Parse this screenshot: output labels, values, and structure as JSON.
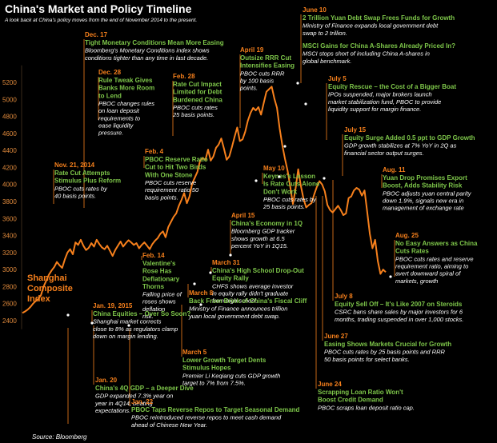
{
  "title": "China's Market and Policy Timeline",
  "subtitle": "A look back at China's policy moves from the end of November 2014 to the present.",
  "source": "Source: Bloomberg",
  "series_label": [
    "Shanghai",
    "Composite",
    "Index"
  ],
  "colors": {
    "background": "#000000",
    "line": "#f7801c",
    "date": "#f7801c",
    "headline": "#7ec74a",
    "body": "#ffffff",
    "axis": "#e08a3c",
    "title": "#ffffff",
    "leader": "#f7801c"
  },
  "chart_data": {
    "type": "line",
    "title": "China's Market and Policy Timeline",
    "ylim": [
      2300,
      5400
    ],
    "yticks": [
      2400,
      2600,
      2800,
      3000,
      3200,
      3400,
      3600,
      3800,
      4000,
      4200,
      4400,
      4600,
      4800,
      5000,
      5200
    ],
    "series": [
      {
        "name": "Shanghai Composite Index",
        "t": [
          0,
          2,
          4,
          6,
          8,
          10,
          12,
          14,
          16,
          18,
          20,
          22,
          24,
          26,
          28,
          30,
          32,
          34,
          36,
          38,
          40,
          42,
          44,
          46,
          48,
          50,
          52,
          54,
          56,
          58,
          60,
          62,
          64,
          66,
          68,
          70,
          72,
          74,
          76,
          78,
          80,
          82,
          84,
          86,
          88,
          90,
          92,
          94,
          96,
          98,
          100,
          102,
          104,
          106,
          108,
          110,
          112,
          114,
          116,
          118,
          120,
          122,
          124,
          126,
          128,
          130,
          132,
          134,
          136,
          138,
          140,
          142,
          144,
          146,
          148,
          150,
          152,
          154,
          156,
          158,
          160,
          162,
          164,
          166,
          168,
          170,
          172,
          174,
          176,
          178,
          180,
          182,
          184,
          186,
          188,
          190,
          192,
          194,
          196,
          198,
          200,
          202,
          204,
          206,
          208,
          210,
          212,
          214,
          216,
          218,
          220,
          222,
          224,
          226,
          228,
          230,
          232,
          234,
          236,
          238,
          240,
          242,
          244,
          246,
          248,
          250,
          252,
          254,
          256,
          258,
          260,
          262,
          264,
          266,
          268,
          270,
          272,
          274
        ],
        "values": [
          2490,
          2508,
          2530,
          2560,
          2600,
          2630,
          2655,
          2700,
          2800,
          2870,
          2940,
          2990,
          3030,
          3090,
          3050,
          3020,
          3120,
          3200,
          3240,
          3180,
          3320,
          3290,
          3350,
          3280,
          3230,
          3255,
          3310,
          3270,
          3350,
          3300,
          3260,
          3240,
          3280,
          3220,
          3160,
          3230,
          3280,
          3330,
          3270,
          3310,
          3345,
          3320,
          3290,
          3310,
          3250,
          3290,
          3320,
          3280,
          3240,
          3300,
          3340,
          3370,
          3420,
          3450,
          3380,
          3500,
          3560,
          3620,
          3660,
          3750,
          3820,
          3900,
          3780,
          3860,
          4010,
          4080,
          4150,
          4280,
          4310,
          4290,
          4410,
          4280,
          4330,
          4430,
          4470,
          4540,
          4420,
          4290,
          4330,
          4440,
          4560,
          4670,
          4510,
          4530,
          4620,
          4750,
          4840,
          4900,
          4870,
          4910,
          4820,
          4960,
          5090,
          5120,
          5150,
          5010,
          4900,
          4660,
          4460,
          4300,
          4160,
          3970,
          3770,
          3950,
          4180,
          3980,
          3830,
          3730,
          3760,
          3780,
          3880,
          3970,
          4040,
          4000,
          3920,
          3760,
          3700,
          3670,
          3710,
          3750,
          3700,
          3640,
          3660,
          3840,
          3860,
          3930,
          3960,
          3940,
          3870,
          3930,
          3680,
          3420,
          3250,
          3350,
          3100,
          2950,
          3000,
          2970
        ]
      }
    ]
  },
  "annotations": [
    {
      "date": "Dec. 17",
      "headline": [
        "Tight Monetary Conditions Mean More Easing"
      ],
      "body": [
        "Bloomberg's Monetary Conditions index shows",
        "conditions tighter than any time in last decade."
      ]
    },
    {
      "date": "Dec. 28",
      "headline": [
        "Rule Tweak Gives",
        "Banks More Room",
        "to Lend"
      ],
      "body": [
        "PBOC changes rules",
        "on loan deposit",
        "requirements to",
        "ease liquidity",
        "pressure."
      ]
    },
    {
      "date": "Feb. 28",
      "headline": [
        "Rate Cut Impact",
        "Limited for Debt",
        "Burdened China"
      ],
      "body": [
        "PBOC cuts rates",
        "25 basis points."
      ]
    },
    {
      "date": "April 19",
      "headline": [
        "Outsize RRR Cut",
        "Intensifies Easing"
      ],
      "body": [
        "PBOC cuts RRR",
        "by 100 basis",
        "points."
      ]
    },
    {
      "date": "June 10",
      "headline": [
        "2 Trillion Yuan Debt Swap Frees Funds for Growth"
      ],
      "body": [
        "Ministry of Finance expands local government debt",
        "swap to 2 trillion."
      ]
    },
    {
      "date": "",
      "headline": [
        "MSCI Gains for China A-Shares Already Priced In?"
      ],
      "body": [
        "MSCI stops short of including China A-shares in",
        "global benchmark."
      ]
    },
    {
      "date": "July 5",
      "headline": [
        "Equity Rescue – the Cost of a Bigger Boat"
      ],
      "body": [
        "IPOs suspended, major brokers launch",
        "market stabilization fund, PBOC to provide",
        "liquidity support for margin finance."
      ]
    },
    {
      "date": "July 15",
      "headline": [
        "Equity Surge Added 0.5 ppt to GDP Growth"
      ],
      "body": [
        "GDP growth stabilizes at 7% YoY in 2Q as",
        "financial sector output surges."
      ]
    },
    {
      "date": "Feb. 4",
      "headline": [
        "PBOC Reserve Ratio",
        "Cut to Hit Two Birds",
        "With One Stone"
      ],
      "body": [
        "PBOC cuts reserve",
        "requirement ratio 50",
        "basis points."
      ]
    },
    {
      "date": "Nov. 21, 2014",
      "headline": [
        "Rate Cut Attempts",
        "Stimulus Plus Reform"
      ],
      "body": [
        "PBOC cuts rates by",
        "40 basis points."
      ]
    },
    {
      "date": "May 10",
      "headline": [
        "Keynes's Lesson",
        "Is Rate Cuts Alone",
        "Don't Work"
      ],
      "body": [
        "PBOC cuts rates by",
        "25 basis points."
      ]
    },
    {
      "date": "Aug. 11",
      "headline": [
        "Yuan Drop Promises Export",
        "Boost, Adds Stability Risk"
      ],
      "body": [
        "PBOC adjusts yuan central parity",
        "down 1.9%, signals new era in",
        "management of exchange rate"
      ]
    },
    {
      "date": "April 15",
      "headline": [
        "China's Economy in 1Q"
      ],
      "body": [
        "Bloomberg GDP tracker",
        "shows growth at 6.5",
        "percent YoY in 1Q15."
      ]
    },
    {
      "date": "Aug. 25",
      "headline": [
        "No Easy Answers as China",
        "Cuts Rates"
      ],
      "body": [
        "PBOC cuts rates and reserve",
        "requirement ratio, aiming to",
        "avert downward spiral of",
        "markets, growth"
      ]
    },
    {
      "date": "Feb. 14",
      "headline": [
        "Valentine's",
        "Rose Has",
        "Deflationary",
        "Thorns"
      ],
      "body": [
        "Falling price of",
        "roses shows",
        "deflation",
        "risk."
      ]
    },
    {
      "date": "March 31",
      "headline": [
        "China's High School Drop-Out",
        "Equity Rally"
      ],
      "body": [
        "CHFS shows average investor",
        "in equity rally didn't graduate",
        "from high school."
      ]
    },
    {
      "date": "July 8",
      "headline": [
        "Equity Sell Off – It's Like 2007 on Steroids"
      ],
      "body": [
        "CSRC bans share sales by major investors for 6",
        "months, trading suspended in over 1,000 stocks."
      ]
    },
    {
      "date": "March 8",
      "headline": [
        "Back From Brink of China's Fiscal Cliff"
      ],
      "body": [
        "Ministry of Finance announces trillion",
        "yuan local government debt swap."
      ]
    },
    {
      "date": "Jan. 19, 2015",
      "headline": [
        "China Equities – Over So Soon?"
      ],
      "body": [
        "Shanghai market corrects",
        "close to 8% as regulators clamp",
        "down on margin lending."
      ]
    },
    {
      "date": "June 27",
      "headline": [
        "Easing Shows Markets Crucial for Growth"
      ],
      "body": [
        "PBOC cuts rates by 25 basis points and RRR",
        "50 basis points for select banks."
      ]
    },
    {
      "date": "March 5",
      "headline": [
        "Lower Growth Target Dents",
        "Stimulus Hopes"
      ],
      "body": [
        "Premier Li Keqiang cuts GDP growth",
        "target to 7% from 7.5%."
      ]
    },
    {
      "date": "Jan. 20",
      "headline": [
        "China's 4Q GDP – a Deeper Dive"
      ],
      "body": [
        "GDP expanded 7.3% year on",
        "year in 4Q14, beating",
        "expectations."
      ]
    },
    {
      "date": "June 24",
      "headline": [
        "Scrapping Loan Ratio Won't",
        "Boost Credit Demand"
      ],
      "body": [
        "PBOC scraps loan deposit ratio cap."
      ]
    },
    {
      "date": "Jan. 22",
      "headline": [
        "PBOC Taps Reverse Repos to Target Seasonal Demand"
      ],
      "body": [
        "PBOC reintroduced reverse repos to meet cash demand",
        "ahead of Chinese New Year."
      ]
    }
  ]
}
